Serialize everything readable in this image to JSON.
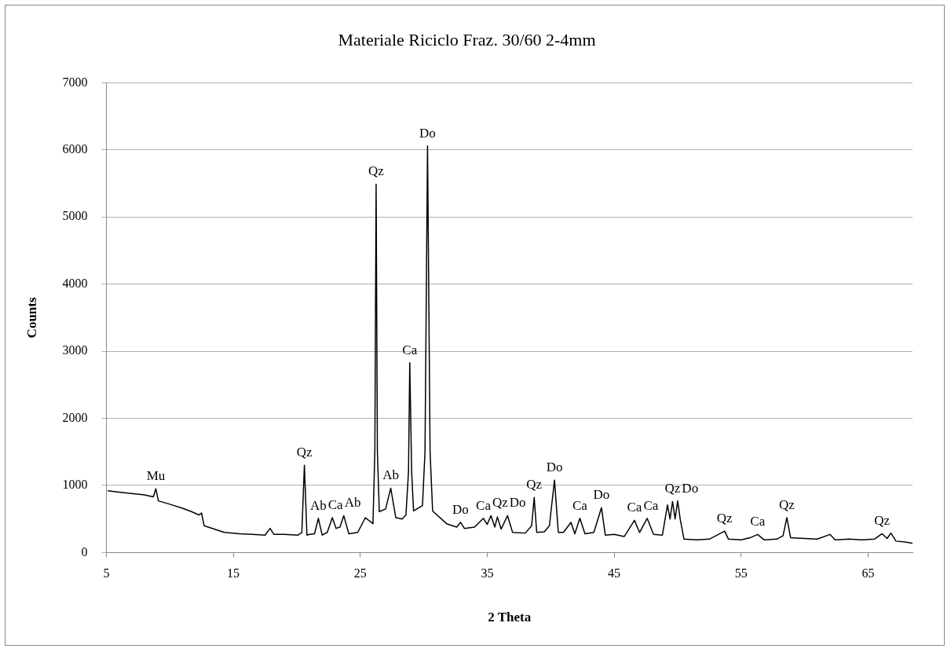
{
  "chart_data": {
    "type": "line",
    "title": "Materiale Riciclo Fraz. 30/60 2-4mm",
    "xlabel": "2 Theta",
    "ylabel": "Counts",
    "xlim": [
      5,
      68.5
    ],
    "xticks": [
      5,
      15,
      25,
      35,
      45,
      55,
      65
    ],
    "ylim": [
      0,
      7000
    ],
    "yticks": [
      0,
      1000,
      2000,
      3000,
      4000,
      5000,
      6000,
      7000
    ],
    "grid": "y",
    "marker": "none",
    "line_style": "solid",
    "series": [
      {
        "color": "#000000",
        "x": [
          5.1,
          6,
          7,
          8,
          8.7,
          8.9,
          9.1,
          10,
          11,
          11.7,
          12.3,
          12.5,
          12.7,
          13.5,
          14.3,
          15.5,
          16.5,
          17.5,
          17.9,
          18.2,
          19,
          20.1,
          20.4,
          20.6,
          20.8,
          21,
          21.4,
          21.7,
          22,
          22.4,
          22.8,
          23.1,
          23.4,
          23.7,
          24.1,
          24.8,
          25.4,
          26,
          26.15,
          26.25,
          26.35,
          26.5,
          27,
          27.4,
          27.8,
          28.3,
          28.6,
          28.8,
          28.9,
          29.05,
          29.2,
          29.9,
          30.1,
          30.3,
          30.5,
          30.7,
          31.8,
          32.6,
          32.9,
          33.2,
          34,
          34.7,
          35,
          35.3,
          35.6,
          35.8,
          36.1,
          36.6,
          37,
          38,
          38.5,
          38.7,
          38.9,
          39.5,
          39.9,
          40.3,
          40.6,
          41,
          41.6,
          41.9,
          42.3,
          42.7,
          43.4,
          44,
          44.3,
          45,
          45.8,
          46.6,
          47,
          47.6,
          48.1,
          48.8,
          49.2,
          49.4,
          49.6,
          49.8,
          50,
          50.2,
          50.5,
          51.5,
          52.5,
          53.7,
          54,
          55,
          55.7,
          56.3,
          56.8,
          57.8,
          58.3,
          58.6,
          58.9,
          60,
          61,
          62,
          62.4,
          63.5,
          64.5,
          65.5,
          66.1,
          66.5,
          66.8,
          67.2,
          67.8,
          68.5
        ],
        "values": [
          920,
          900,
          880,
          860,
          830,
          950,
          770,
          720,
          660,
          610,
          560,
          590,
          400,
          350,
          300,
          280,
          270,
          260,
          360,
          270,
          270,
          260,
          300,
          1300,
          260,
          270,
          280,
          510,
          260,
          300,
          520,
          360,
          380,
          550,
          280,
          300,
          520,
          430,
          1500,
          5490,
          1500,
          610,
          650,
          960,
          520,
          500,
          560,
          1200,
          2830,
          1200,
          620,
          700,
          1500,
          6060,
          1500,
          620,
          430,
          380,
          450,
          360,
          380,
          510,
          420,
          550,
          380,
          530,
          350,
          550,
          300,
          290,
          400,
          820,
          300,
          310,
          400,
          1080,
          300,
          300,
          450,
          280,
          510,
          280,
          300,
          670,
          260,
          270,
          240,
          480,
          300,
          510,
          270,
          260,
          710,
          500,
          760,
          500,
          770,
          500,
          200,
          190,
          200,
          320,
          200,
          190,
          220,
          270,
          190,
          200,
          250,
          520,
          220,
          210,
          200,
          270,
          190,
          200,
          190,
          200,
          280,
          210,
          290,
          170,
          160,
          140
        ]
      }
    ],
    "annotations": [
      {
        "text": "Mu",
        "x": 8.9,
        "y": 950
      },
      {
        "text": "Qz",
        "x": 20.6,
        "y": 1300
      },
      {
        "text": "Ab",
        "x": 21.7,
        "y": 510
      },
      {
        "text": "Ca",
        "x": 22.8,
        "y": 520
      },
      {
        "text": "Ab",
        "x": 23.7,
        "y": 550
      },
      {
        "text": "Qz",
        "x": 26.25,
        "y": 5490
      },
      {
        "text": "Ab",
        "x": 27.4,
        "y": 960
      },
      {
        "text": "Ca",
        "x": 28.9,
        "y": 2830
      },
      {
        "text": "Do",
        "x": 30.3,
        "y": 6060
      },
      {
        "text": "Do",
        "x": 32.9,
        "y": 450
      },
      {
        "text": "Ca",
        "x": 34.7,
        "y": 510
      },
      {
        "text": "Qz",
        "x": 35.3,
        "y": 550
      },
      {
        "text": "Do",
        "x": 36.6,
        "y": 550
      },
      {
        "text": "Qz",
        "x": 38.7,
        "y": 820
      },
      {
        "text": "Do",
        "x": 40.3,
        "y": 1080
      },
      {
        "text": "Ca",
        "x": 42.3,
        "y": 510
      },
      {
        "text": "Do",
        "x": 44,
        "y": 670
      },
      {
        "text": "Ca",
        "x": 46.6,
        "y": 480
      },
      {
        "text": "Ca",
        "x": 47.6,
        "y": 510
      },
      {
        "text": "Qz",
        "x": 49.6,
        "y": 760
      },
      {
        "text": "Do",
        "x": 50,
        "y": 770
      },
      {
        "text": "Qz",
        "x": 53.7,
        "y": 320
      },
      {
        "text": "Ca",
        "x": 56.3,
        "y": 270
      },
      {
        "text": "Qz",
        "x": 58.6,
        "y": 520
      },
      {
        "text": "Qz",
        "x": 66.1,
        "y": 280
      }
    ]
  }
}
